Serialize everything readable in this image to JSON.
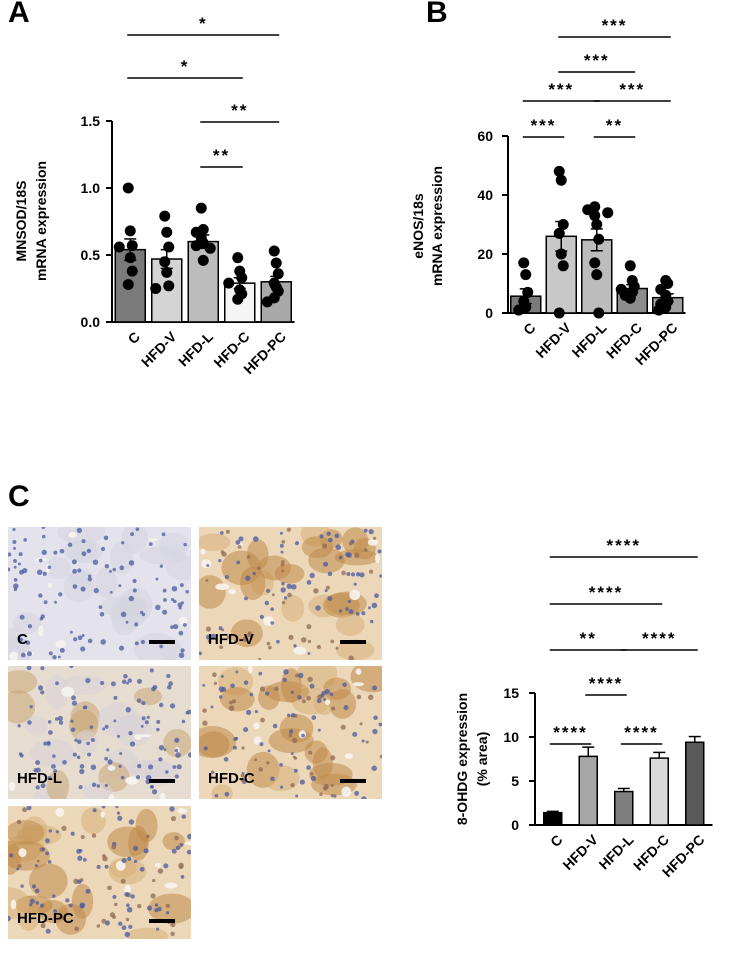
{
  "panels": {
    "a": "A",
    "b": "B",
    "c": "C"
  },
  "chart_data": [
    {
      "type": "bar",
      "panel": "A",
      "ylabel_line1": "MNSOD/18S",
      "ylabel_line2": "mRNA expression",
      "categories": [
        "C",
        "HFD-V",
        "HFD-L",
        "HFD-C",
        "HFD-PC"
      ],
      "values": [
        0.54,
        0.47,
        0.6,
        0.29,
        0.3
      ],
      "errors": [
        0.08,
        0.07,
        0.05,
        0.04,
        0.04
      ],
      "points": [
        [
          1.0,
          0.68,
          0.57,
          0.56,
          0.48,
          0.38,
          0.28
        ],
        [
          0.79,
          0.67,
          0.56,
          0.45,
          0.37,
          0.27,
          0.25
        ],
        [
          0.85,
          0.69,
          0.67,
          0.63,
          0.59,
          0.57,
          0.55,
          0.46
        ],
        [
          0.48,
          0.38,
          0.33,
          0.29,
          0.24,
          0.21,
          0.17
        ],
        [
          0.53,
          0.44,
          0.36,
          0.29,
          0.26,
          0.23,
          0.18,
          0.15
        ]
      ],
      "bar_colors": [
        "#7a7a7a",
        "#d4d4d4",
        "#bcbcbc",
        "#f5f5f5",
        "#a9a9a9"
      ],
      "ylim": [
        0,
        1.5
      ],
      "yticks": [
        "0.0",
        "0.5",
        "1.0",
        "1.5"
      ],
      "significance": [
        {
          "from": 0,
          "to": 4,
          "label": "*"
        },
        {
          "from": 0,
          "to": 3,
          "label": "*"
        },
        {
          "from": 2,
          "to": 4,
          "label": "**"
        },
        {
          "from": 2,
          "to": 3,
          "label": "**"
        }
      ]
    },
    {
      "type": "bar",
      "panel": "B",
      "ylabel_line1": "eNOS/18s",
      "ylabel_line2": "mRNA expression",
      "categories": [
        "C",
        "HFD-V",
        "HFD-L",
        "HFD-C",
        "HFD-PC"
      ],
      "values": [
        5.7,
        26.0,
        24.8,
        8.3,
        5.2
      ],
      "errors": [
        2.5,
        5.0,
        3.7,
        1.3,
        1.3
      ],
      "points": [
        [
          17,
          13,
          7,
          4,
          2,
          1
        ],
        [
          48,
          45,
          30,
          27,
          20,
          16,
          0
        ],
        [
          36,
          35,
          34,
          33,
          30,
          25,
          17,
          13,
          0
        ],
        [
          16,
          11,
          9,
          8,
          7,
          6,
          5
        ],
        [
          11,
          10,
          8,
          6,
          4,
          3,
          2,
          1
        ]
      ],
      "bar_colors": [
        "#7a7a7a",
        "#c8c8c8",
        "#bcbcbc",
        "#8c8c8c",
        "#a0a0a0"
      ],
      "ylim": [
        0,
        60
      ],
      "yticks": [
        "0",
        "20",
        "40",
        "60"
      ],
      "significance": [
        {
          "from": 1,
          "to": 4,
          "label": "***"
        },
        {
          "from": 1,
          "to": 3,
          "label": "***"
        },
        {
          "from": 0,
          "to": 2,
          "label": "***"
        },
        {
          "from": 2,
          "to": 4,
          "label": "***"
        },
        {
          "from": 0,
          "to": 1,
          "label": "***"
        },
        {
          "from": 2,
          "to": 3,
          "label": "**"
        }
      ]
    },
    {
      "type": "bar",
      "panel": "C",
      "ylabel_line1": "8-OHDG expression",
      "ylabel_line2": "(% area)",
      "categories": [
        "C",
        "HFD-V",
        "HFD-L",
        "HFD-C",
        "HFD-PC"
      ],
      "values": [
        1.4,
        7.8,
        3.8,
        7.6,
        9.4
      ],
      "errors": [
        0.15,
        1.05,
        0.35,
        0.65,
        0.65
      ],
      "bar_colors": [
        "#000000",
        "#a6a6a6",
        "#7f7f7f",
        "#d9d9d9",
        "#595959"
      ],
      "ylim": [
        0,
        15
      ],
      "yticks": [
        "0",
        "5",
        "10",
        "15"
      ],
      "significance": [
        {
          "from": 0,
          "to": 4,
          "label": "****"
        },
        {
          "from": 0,
          "to": 3,
          "label": "****"
        },
        {
          "from": 0,
          "to": 2,
          "label": "**"
        },
        {
          "from": 2,
          "to": 4,
          "label": "****"
        },
        {
          "from": 1,
          "to": 2,
          "label": "****"
        },
        {
          "from": 0,
          "to": 1,
          "label": "****"
        },
        {
          "from": 2,
          "to": 3,
          "label": "****"
        }
      ]
    }
  ],
  "micrographs": [
    {
      "label": "C",
      "stain": "blue"
    },
    {
      "label": "HFD-V",
      "stain": "brown"
    },
    {
      "label": "HFD-L",
      "stain": "mixed"
    },
    {
      "label": "HFD-C",
      "stain": "brown"
    },
    {
      "label": "HFD-PC",
      "stain": "brown"
    }
  ]
}
